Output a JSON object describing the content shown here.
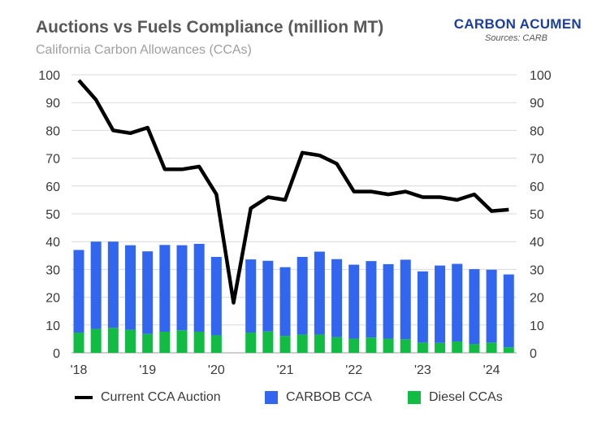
{
  "header": {
    "title": "Auctions vs Fuels Compliance (million MT)",
    "subtitle": "California Carbon Allowances (CCAs)",
    "brand": "CARBON ACUMEN",
    "source": "Sources: CARB"
  },
  "colors": {
    "line": "#000000",
    "carbob": "#3366ee",
    "diesel": "#11bb44",
    "grid": "#d9d9d9"
  },
  "chart_data": {
    "type": "bar",
    "title": "Auctions vs Fuels Compliance (million MT)",
    "subtitle": "California Carbon Allowances (CCAs)",
    "ylim": [
      0,
      100
    ],
    "yticks": [
      0,
      10,
      20,
      30,
      40,
      50,
      60,
      70,
      80,
      90,
      100
    ],
    "xtick_labels": [
      "'18",
      "'19",
      "'20",
      "'21",
      "'22",
      "'23",
      "'24"
    ],
    "categories": [
      "Q1'18",
      "Q2'18",
      "Q3'18",
      "Q4'18",
      "Q1'19",
      "Q2'19",
      "Q3'19",
      "Q4'19",
      "Q1'20",
      "Q2'20",
      "Q3'20",
      "Q4'20",
      "Q1'21",
      "Q2'21",
      "Q3'21",
      "Q4'21",
      "Q1'22",
      "Q2'22",
      "Q3'22",
      "Q4'22",
      "Q1'23",
      "Q2'23",
      "Q3'23",
      "Q4'23",
      "Q1'24",
      "Q2'24"
    ],
    "series": [
      {
        "name": "Current CCA Auction",
        "kind": "line",
        "values": [
          98,
          91,
          80,
          79,
          81,
          66,
          66,
          67,
          57,
          18,
          52,
          56,
          55,
          72,
          71,
          68,
          58,
          58,
          57,
          58,
          56,
          56,
          55,
          57,
          51,
          51.5
        ]
      },
      {
        "name": "CARBOB CCA",
        "kind": "stacked-bar",
        "values": [
          29.7,
          31.4,
          31.0,
          30.4,
          29.7,
          31.2,
          30.6,
          31.6,
          28.2,
          null,
          26.3,
          25.4,
          24.7,
          27.9,
          29.8,
          28.1,
          26.6,
          27.5,
          26.8,
          28.6,
          25.6,
          27.8,
          27.9,
          26.9,
          26.2,
          null
        ]
      },
      {
        "name": "Diesel CCAs",
        "kind": "stacked-bar",
        "values": [
          7.3,
          8.6,
          9.0,
          8.3,
          6.8,
          7.6,
          8.1,
          7.6,
          6.3,
          null,
          7.3,
          7.7,
          6.1,
          6.6,
          6.6,
          5.6,
          5.1,
          5.5,
          5.1,
          4.9,
          3.7,
          3.6,
          4.1,
          3.2,
          3.7,
          null
        ],
        "partial": {
          "note": "final quarter",
          "index": 25,
          "carbob": 26.2,
          "diesel": 2.0
        }
      }
    ],
    "legend": "bottom",
    "dual_axis": true,
    "grid": true
  },
  "legend": {
    "items": [
      {
        "label": "Current CCA Auction"
      },
      {
        "label": "CARBOB CCA"
      },
      {
        "label": "Diesel CCAs"
      }
    ]
  }
}
